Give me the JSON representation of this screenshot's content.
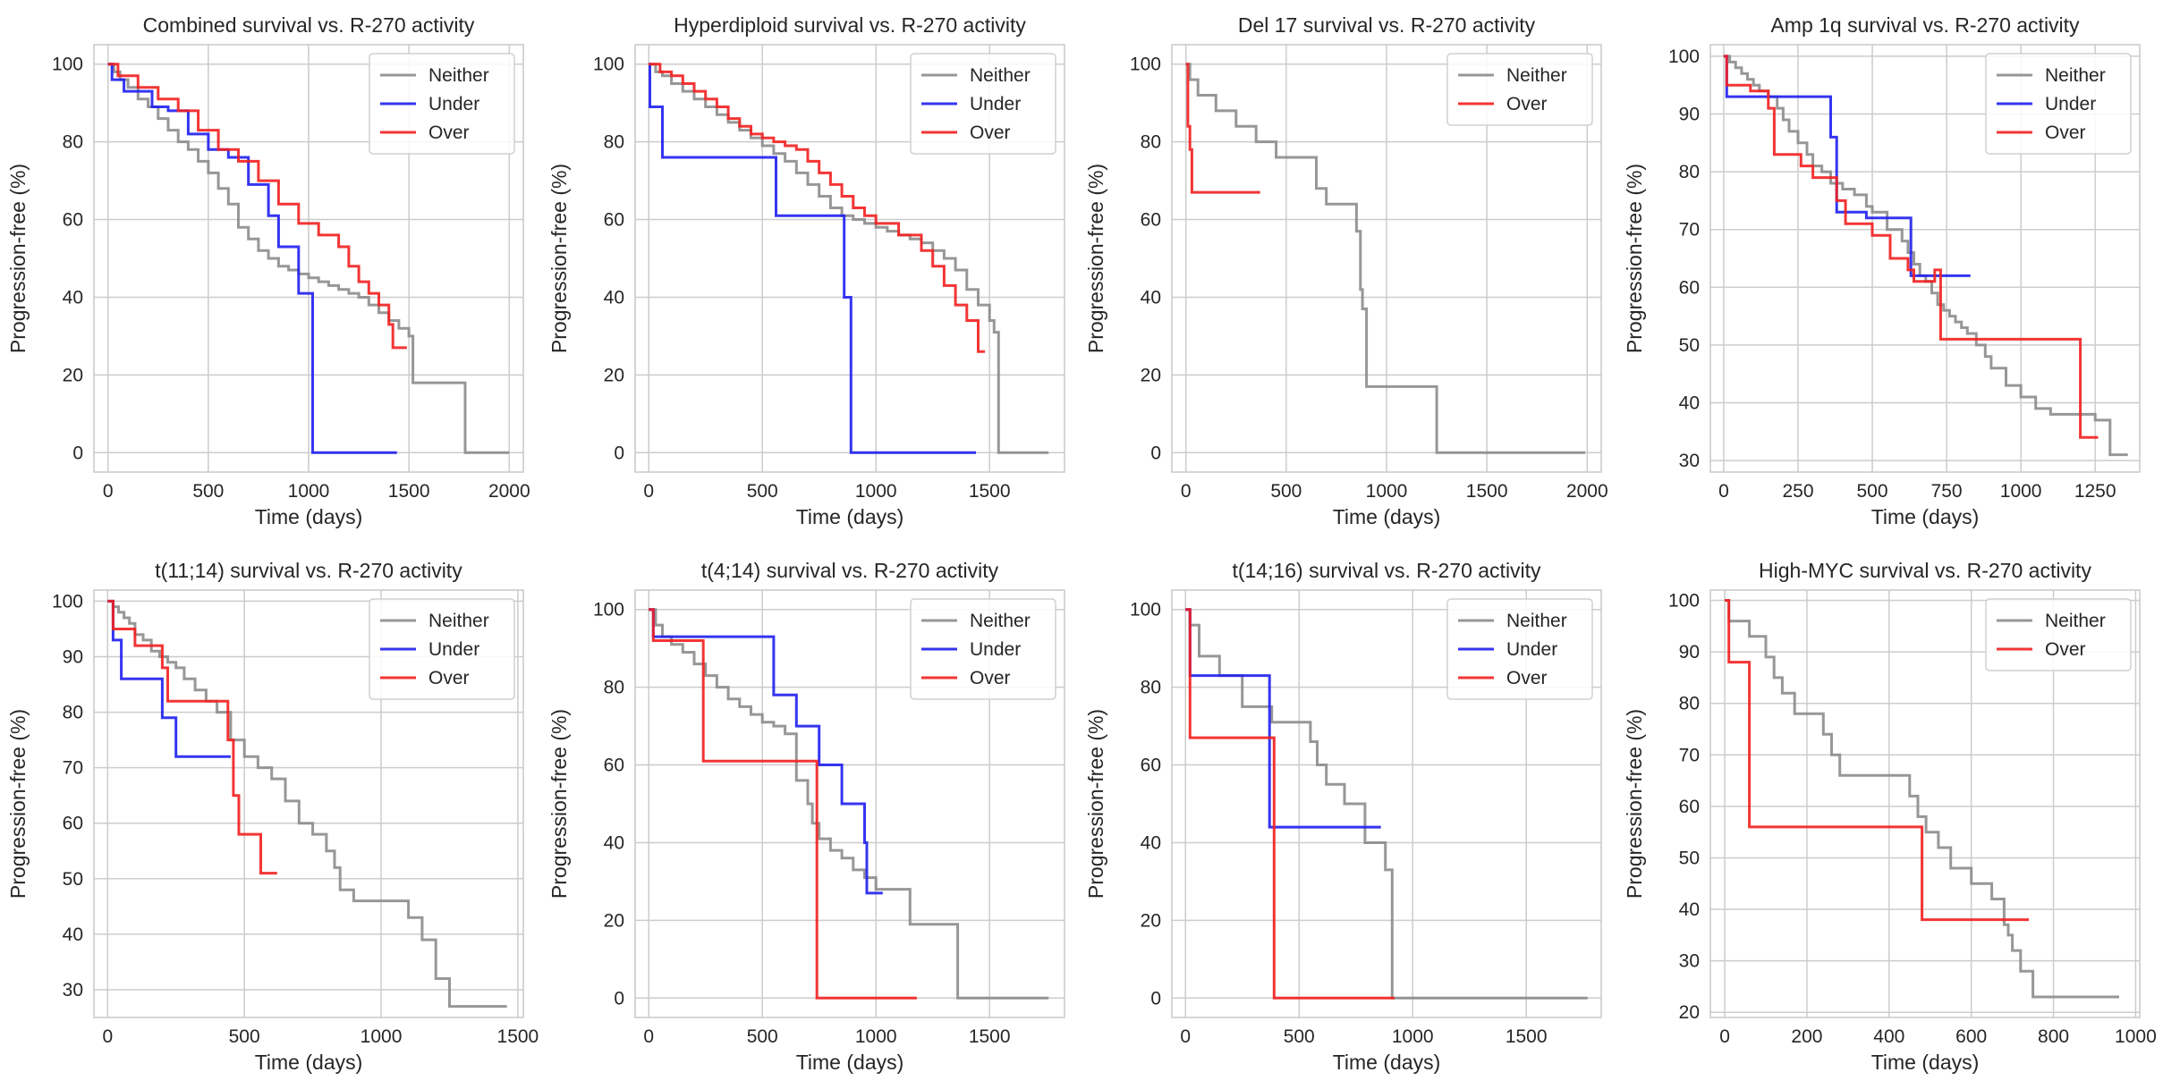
{
  "colors": {
    "Neither": "#8c8c8c",
    "Under": "#1f1fef",
    "Over": "#f21f1f",
    "grid": "#cccccc",
    "spine": "#c8c8c8"
  },
  "chart_data": [
    {
      "type": "line",
      "step": true,
      "title": "Combined survival vs. R-270 activity",
      "xlabel": "Time (days)",
      "ylabel": "Progression-free (%)",
      "xlim": [
        -70,
        2070
      ],
      "ylim": [
        -5,
        105
      ],
      "xticks": [
        0,
        500,
        1000,
        1500,
        2000
      ],
      "yticks": [
        0,
        20,
        40,
        60,
        80,
        100
      ],
      "legend": "top-right",
      "series": [
        {
          "name": "Neither",
          "x": [
            0,
            30,
            60,
            100,
            150,
            200,
            250,
            300,
            350,
            400,
            450,
            500,
            550,
            600,
            650,
            700,
            750,
            800,
            850,
            900,
            950,
            1000,
            1050,
            1100,
            1150,
            1200,
            1250,
            1300,
            1350,
            1400,
            1450,
            1500,
            1520,
            1760,
            1780,
            2000
          ],
          "y": [
            100,
            98,
            96,
            94,
            91,
            89,
            86,
            83,
            80,
            78,
            75,
            72,
            68,
            64,
            58,
            55,
            52,
            50,
            48,
            47,
            46,
            45,
            44,
            43,
            42,
            41,
            40,
            38,
            36,
            34,
            32,
            30,
            18,
            18,
            0,
            0
          ]
        },
        {
          "name": "Under",
          "x": [
            0,
            20,
            80,
            220,
            300,
            400,
            500,
            600,
            700,
            800,
            850,
            950,
            1020,
            1440
          ],
          "y": [
            100,
            96,
            93,
            89,
            88,
            82,
            78,
            76,
            69,
            61,
            53,
            41,
            0,
            0
          ]
        },
        {
          "name": "Over",
          "x": [
            0,
            50,
            150,
            250,
            350,
            450,
            550,
            650,
            750,
            850,
            950,
            1050,
            1150,
            1200,
            1250,
            1300,
            1350,
            1400,
            1420,
            1490
          ],
          "y": [
            100,
            97,
            94,
            91,
            88,
            83,
            78,
            75,
            70,
            64,
            59,
            56,
            53,
            48,
            44,
            41,
            38,
            33,
            27,
            27
          ]
        }
      ]
    },
    {
      "type": "line",
      "step": true,
      "title": "Hyperdiploid survival vs. R-270 activity",
      "xlabel": "Time (days)",
      "ylabel": "Progression-free (%)",
      "xlim": [
        -60,
        1830
      ],
      "ylim": [
        -5,
        105
      ],
      "xticks": [
        0,
        500,
        1000,
        1500
      ],
      "yticks": [
        0,
        20,
        40,
        60,
        80,
        100
      ],
      "legend": "top-right",
      "series": [
        {
          "name": "Neither",
          "x": [
            0,
            30,
            60,
            100,
            150,
            200,
            250,
            300,
            350,
            400,
            450,
            500,
            550,
            600,
            650,
            700,
            750,
            800,
            850,
            900,
            950,
            1000,
            1050,
            1100,
            1150,
            1200,
            1250,
            1300,
            1350,
            1400,
            1450,
            1500,
            1520,
            1540,
            1760
          ],
          "y": [
            100,
            98,
            97,
            95,
            93,
            91,
            89,
            87,
            85,
            83,
            81,
            79,
            77,
            75,
            72,
            69,
            66,
            63,
            61,
            60,
            59,
            58,
            57,
            56,
            55,
            54,
            52,
            50,
            47,
            42,
            38,
            34,
            31,
            0,
            0
          ]
        },
        {
          "name": "Under",
          "x": [
            0,
            5,
            60,
            560,
            860,
            890,
            1440
          ],
          "y": [
            100,
            89,
            76,
            61,
            40,
            0,
            0
          ]
        },
        {
          "name": "Over",
          "x": [
            0,
            50,
            100,
            150,
            200,
            250,
            300,
            350,
            400,
            450,
            500,
            550,
            600,
            650,
            700,
            750,
            800,
            850,
            900,
            950,
            1000,
            1100,
            1200,
            1250,
            1300,
            1350,
            1400,
            1450,
            1480
          ],
          "y": [
            100,
            98,
            97,
            95,
            93,
            91,
            89,
            86,
            84,
            82,
            81,
            80,
            79,
            78,
            75,
            72,
            69,
            66,
            63,
            61,
            59,
            56,
            52,
            48,
            43,
            38,
            34,
            26,
            26
          ]
        }
      ]
    },
    {
      "type": "line",
      "step": true,
      "title": "Del 17 survival vs. R-270 activity",
      "xlabel": "Time (days)",
      "ylabel": "Progression-free (%)",
      "xlim": [
        -70,
        2070
      ],
      "ylim": [
        -5,
        105
      ],
      "xticks": [
        0,
        500,
        1000,
        1500,
        2000
      ],
      "yticks": [
        0,
        20,
        40,
        60,
        80,
        100
      ],
      "legend": "top-right",
      "series": [
        {
          "name": "Neither",
          "x": [
            0,
            20,
            60,
            150,
            250,
            350,
            450,
            550,
            650,
            700,
            850,
            870,
            880,
            900,
            1000,
            1250,
            1990
          ],
          "y": [
            100,
            96,
            92,
            88,
            84,
            80,
            76,
            76,
            68,
            64,
            57,
            42,
            37,
            17,
            17,
            0,
            0
          ]
        },
        {
          "name": "Over",
          "x": [
            0,
            10,
            20,
            30,
            370
          ],
          "y": [
            100,
            84,
            78,
            67,
            67
          ]
        }
      ]
    },
    {
      "type": "line",
      "step": true,
      "title": "Amp 1q survival vs. R-270 activity",
      "xlabel": "Time (days)",
      "ylabel": "Progression-free (%)",
      "xlim": [
        -45,
        1400
      ],
      "ylim": [
        28,
        102
      ],
      "xticks": [
        0,
        250,
        500,
        750,
        1000,
        1250
      ],
      "yticks": [
        30,
        40,
        50,
        60,
        70,
        80,
        90,
        100
      ],
      "legend": "top-right",
      "series": [
        {
          "name": "Neither",
          "x": [
            0,
            20,
            40,
            60,
            80,
            100,
            120,
            150,
            180,
            200,
            220,
            250,
            280,
            300,
            330,
            360,
            400,
            440,
            480,
            500,
            550,
            600,
            620,
            640,
            660,
            680,
            700,
            720,
            740,
            760,
            780,
            800,
            820,
            850,
            880,
            900,
            950,
            1000,
            1050,
            1100,
            1200,
            1250,
            1300,
            1360
          ],
          "y": [
            100,
            99,
            98,
            97,
            96,
            95,
            94,
            93,
            91,
            89,
            87,
            85,
            83,
            81,
            80,
            78,
            77,
            76,
            74,
            73,
            70,
            68,
            66,
            64,
            62,
            61,
            59,
            57,
            56,
            55,
            54,
            53,
            52,
            50,
            48,
            46,
            43,
            41,
            39,
            38,
            38,
            37,
            31,
            31
          ]
        },
        {
          "name": "Under",
          "x": [
            0,
            10,
            360,
            380,
            480,
            630,
            640,
            830
          ],
          "y": [
            100,
            93,
            86,
            73,
            72,
            62,
            62,
            62
          ]
        },
        {
          "name": "Over",
          "x": [
            0,
            10,
            90,
            150,
            170,
            260,
            300,
            380,
            410,
            500,
            560,
            620,
            640,
            710,
            730,
            1180,
            1200,
            1260
          ],
          "y": [
            100,
            95,
            94,
            91,
            83,
            81,
            79,
            75,
            71,
            69,
            65,
            63,
            61,
            63,
            51,
            51,
            34,
            34
          ]
        }
      ]
    },
    {
      "type": "line",
      "step": true,
      "title": "t(11;14) survival vs. R-270 activity",
      "xlabel": "Time (days)",
      "ylabel": "Progression-free (%)",
      "xlim": [
        -50,
        1520
      ],
      "ylim": [
        25,
        102
      ],
      "xticks": [
        0,
        500,
        1000,
        1500
      ],
      "yticks": [
        30,
        40,
        50,
        60,
        70,
        80,
        90,
        100
      ],
      "legend": "top-right",
      "series": [
        {
          "name": "Neither",
          "x": [
            0,
            20,
            40,
            60,
            80,
            100,
            130,
            160,
            190,
            220,
            250,
            280,
            320,
            360,
            400,
            450,
            500,
            550,
            600,
            650,
            700,
            750,
            800,
            830,
            850,
            900,
            1050,
            1100,
            1150,
            1200,
            1250,
            1460
          ],
          "y": [
            100,
            99,
            98,
            97,
            96,
            94,
            93,
            91,
            90,
            89,
            88,
            86,
            84,
            82,
            80,
            75,
            72,
            70,
            68,
            64,
            60,
            58,
            55,
            52,
            48,
            46,
            46,
            43,
            39,
            32,
            27,
            27
          ]
        },
        {
          "name": "Under",
          "x": [
            0,
            20,
            50,
            200,
            250,
            450
          ],
          "y": [
            100,
            93,
            86,
            79,
            72,
            72
          ]
        },
        {
          "name": "Over",
          "x": [
            0,
            20,
            100,
            200,
            220,
            420,
            440,
            460,
            480,
            520,
            560,
            620
          ],
          "y": [
            100,
            95,
            92,
            88,
            82,
            82,
            75,
            65,
            58,
            58,
            51,
            51
          ]
        }
      ]
    },
    {
      "type": "line",
      "step": true,
      "title": "t(4;14) survival vs. R-270 activity",
      "xlabel": "Time (days)",
      "ylabel": "Progression-free (%)",
      "xlim": [
        -60,
        1830
      ],
      "ylim": [
        -5,
        105
      ],
      "xticks": [
        0,
        500,
        1000,
        1500
      ],
      "yticks": [
        0,
        20,
        40,
        60,
        80,
        100
      ],
      "legend": "top-right",
      "series": [
        {
          "name": "Neither",
          "x": [
            0,
            30,
            60,
            100,
            150,
            200,
            250,
            300,
            350,
            400,
            450,
            500,
            550,
            600,
            650,
            700,
            720,
            750,
            800,
            850,
            900,
            950,
            1000,
            1050,
            1100,
            1150,
            1350,
            1360,
            1760
          ],
          "y": [
            100,
            96,
            93,
            91,
            89,
            86,
            83,
            80,
            77,
            75,
            73,
            71,
            70,
            68,
            56,
            50,
            45,
            41,
            38,
            36,
            33,
            31,
            28,
            28,
            28,
            19,
            19,
            0,
            0
          ]
        },
        {
          "name": "Under",
          "x": [
            0,
            20,
            380,
            550,
            650,
            750,
            850,
            950,
            960,
            1030
          ],
          "y": [
            100,
            93,
            93,
            78,
            70,
            60,
            50,
            40,
            27,
            27
          ]
        },
        {
          "name": "Over",
          "x": [
            0,
            20,
            240,
            720,
            740,
            1180
          ],
          "y": [
            100,
            92,
            61,
            61,
            0,
            0
          ]
        }
      ]
    },
    {
      "type": "line",
      "step": true,
      "title": "t(14;16) survival vs. R-270 activity",
      "xlabel": "Time (days)",
      "ylabel": "Progression-free (%)",
      "xlim": [
        -60,
        1830
      ],
      "ylim": [
        -5,
        105
      ],
      "xticks": [
        0,
        500,
        1000,
        1500
      ],
      "yticks": [
        0,
        20,
        40,
        60,
        80,
        100
      ],
      "legend": "top-right",
      "series": [
        {
          "name": "Neither",
          "x": [
            0,
            20,
            60,
            150,
            250,
            380,
            450,
            550,
            580,
            620,
            700,
            790,
            880,
            910,
            1770
          ],
          "y": [
            100,
            96,
            88,
            83,
            75,
            71,
            71,
            66,
            60,
            55,
            50,
            40,
            33,
            0,
            0
          ]
        },
        {
          "name": "Under",
          "x": [
            0,
            20,
            330,
            370,
            860
          ],
          "y": [
            100,
            83,
            83,
            44,
            44
          ]
        },
        {
          "name": "Over",
          "x": [
            0,
            20,
            370,
            390,
            920
          ],
          "y": [
            100,
            67,
            67,
            0,
            0
          ]
        }
      ]
    },
    {
      "type": "line",
      "step": true,
      "title": "High-MYC survival vs. R-270 activity",
      "xlabel": "Time (days)",
      "ylabel": "Progression-free (%)",
      "xlim": [
        -35,
        1010
      ],
      "ylim": [
        19,
        102
      ],
      "xticks": [
        0,
        200,
        400,
        600,
        800,
        1000
      ],
      "yticks": [
        20,
        30,
        40,
        50,
        60,
        70,
        80,
        90,
        100
      ],
      "legend": "top-right",
      "series": [
        {
          "name": "Neither",
          "x": [
            0,
            10,
            60,
            100,
            120,
            140,
            170,
            240,
            260,
            280,
            450,
            470,
            490,
            520,
            550,
            600,
            650,
            680,
            690,
            700,
            720,
            750,
            960
          ],
          "y": [
            100,
            96,
            93,
            89,
            85,
            82,
            78,
            74,
            70,
            66,
            62,
            58,
            55,
            52,
            48,
            45,
            42,
            37,
            35,
            32,
            28,
            23,
            23
          ]
        },
        {
          "name": "Over",
          "x": [
            0,
            10,
            60,
            470,
            480,
            740
          ],
          "y": [
            100,
            88,
            56,
            56,
            38,
            38
          ]
        }
      ]
    }
  ]
}
